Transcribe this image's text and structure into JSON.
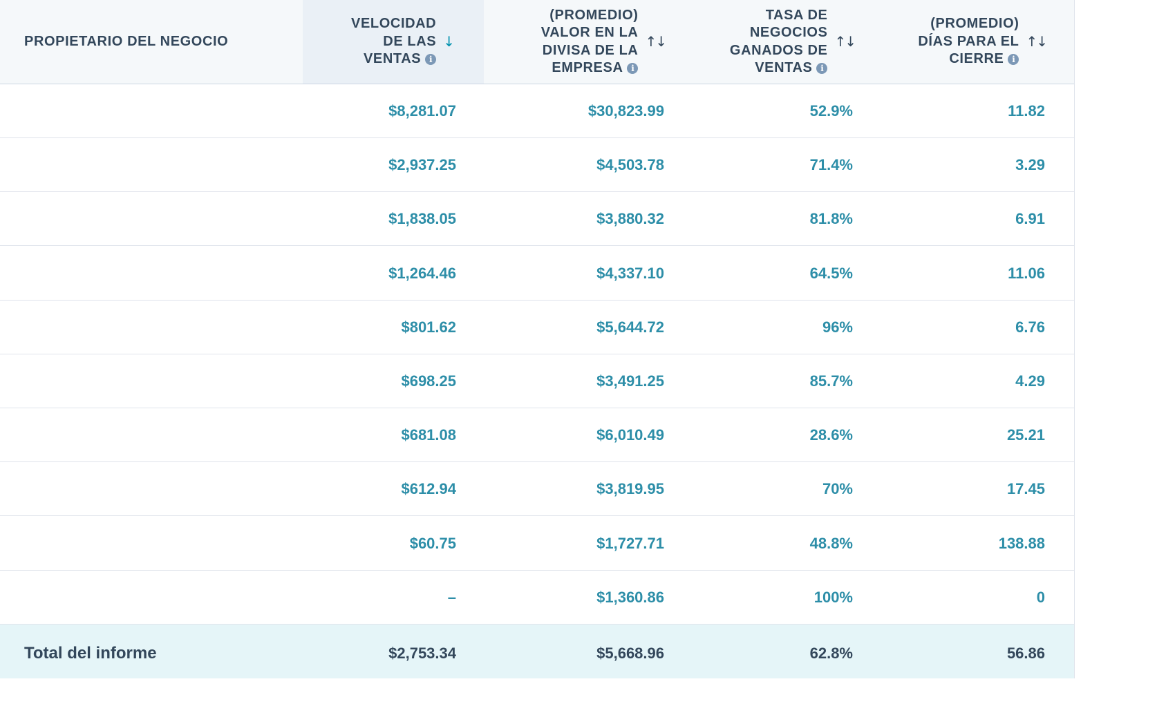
{
  "columns": {
    "owner": "PROPIETARIO DEL NEGOCIO",
    "sales_velocity": "VELOCIDAD\nDE LAS\nVENTAS",
    "avg_value": "(PROMEDIO)\nVALOR EN LA\nDIVISA DE LA\nEMPRESA",
    "win_rate": "TASA DE\nNEGOCIOS\nGANADOS DE\nVENTAS",
    "avg_days": "(PROMEDIO)\nDÍAS PARA EL\nCIERRE"
  },
  "sort": {
    "column": "sales_velocity",
    "direction": "descending"
  },
  "icons": {
    "info": "info-icon",
    "sort_active": "arrow-down-icon",
    "sort_inactive": "sort-up-down-icon"
  },
  "rows": [
    {
      "owner": "",
      "sales_velocity": "$8,281.07",
      "avg_value": "$30,823.99",
      "win_rate": "52.9%",
      "avg_days": "11.82"
    },
    {
      "owner": "",
      "sales_velocity": "$2,937.25",
      "avg_value": "$4,503.78",
      "win_rate": "71.4%",
      "avg_days": "3.29"
    },
    {
      "owner": "",
      "sales_velocity": "$1,838.05",
      "avg_value": "$3,880.32",
      "win_rate": "81.8%",
      "avg_days": "6.91"
    },
    {
      "owner": "",
      "sales_velocity": "$1,264.46",
      "avg_value": "$4,337.10",
      "win_rate": "64.5%",
      "avg_days": "11.06"
    },
    {
      "owner": "",
      "sales_velocity": "$801.62",
      "avg_value": "$5,644.72",
      "win_rate": "96%",
      "avg_days": "6.76"
    },
    {
      "owner": "",
      "sales_velocity": "$698.25",
      "avg_value": "$3,491.25",
      "win_rate": "85.7%",
      "avg_days": "4.29"
    },
    {
      "owner": "",
      "sales_velocity": "$681.08",
      "avg_value": "$6,010.49",
      "win_rate": "28.6%",
      "avg_days": "25.21"
    },
    {
      "owner": "",
      "sales_velocity": "$612.94",
      "avg_value": "$3,819.95",
      "win_rate": "70%",
      "avg_days": "17.45"
    },
    {
      "owner": "",
      "sales_velocity": "$60.75",
      "avg_value": "$1,727.71",
      "win_rate": "48.8%",
      "avg_days": "138.88"
    },
    {
      "owner": "",
      "sales_velocity": "–",
      "avg_value": "$1,360.86",
      "win_rate": "100%",
      "avg_days": "0"
    }
  ],
  "total": {
    "label": "Total del informe",
    "sales_velocity": "$2,753.34",
    "avg_value": "$5,668.96",
    "win_rate": "62.8%",
    "avg_days": "56.86"
  },
  "colors": {
    "header_bg": "#f5f8fa",
    "sorted_header_bg": "#eaf0f6",
    "value_text": "#2d8ea8",
    "total_bg": "#e5f5f8",
    "text_dark": "#33475b"
  }
}
